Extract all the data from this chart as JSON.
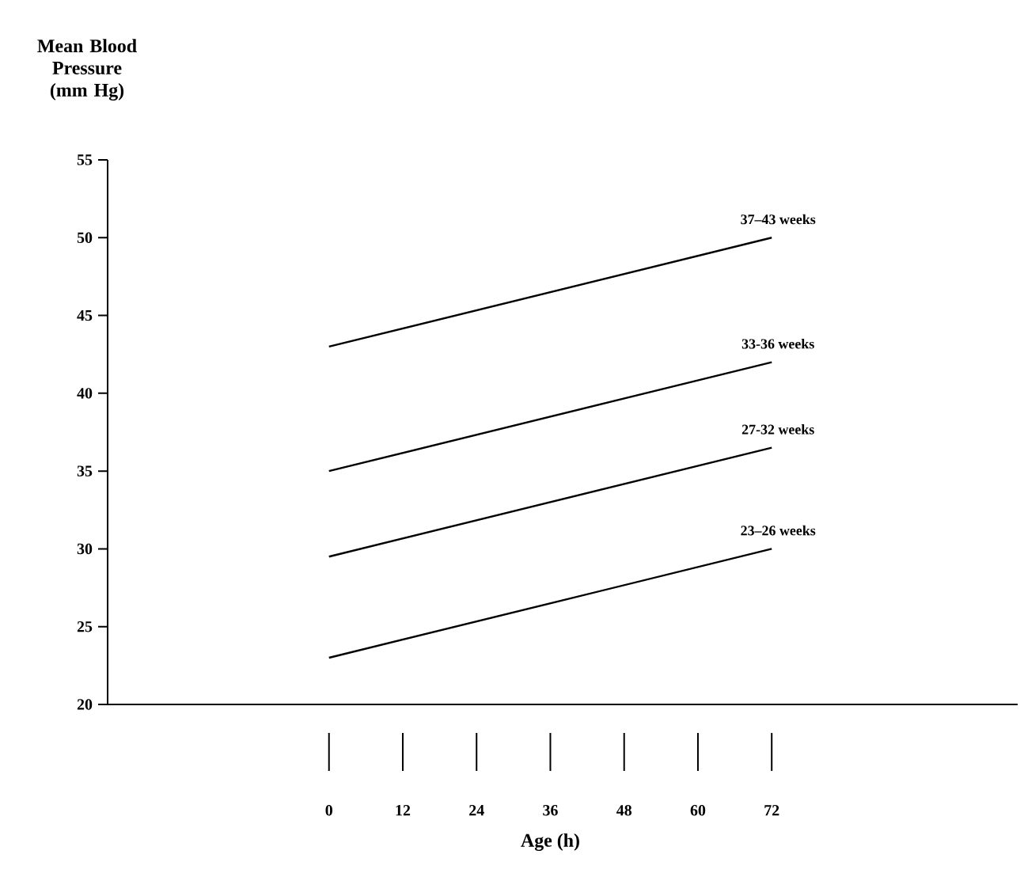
{
  "chart_data": {
    "type": "line",
    "ylabel": "Mean Blood Pressure (mm Hg)",
    "xlabel": "Age (h)",
    "xlim": [
      -36,
      112
    ],
    "xticks": [
      0,
      12,
      24,
      36,
      48,
      60,
      72
    ],
    "ylim": [
      20,
      55
    ],
    "yticks": [
      20,
      25,
      30,
      35,
      40,
      45,
      50,
      55
    ],
    "x": [
      0,
      72
    ],
    "series": [
      {
        "name": "37–43 weeks",
        "color": "#000000",
        "values": [
          43,
          50
        ]
      },
      {
        "name": "33-36 weeks",
        "color": "#000000",
        "values": [
          35,
          42
        ]
      },
      {
        "name": "27-32 weeks",
        "color": "#000000",
        "values": [
          29.5,
          36.5
        ]
      },
      {
        "name": "23–26 weeks",
        "color": "#000000",
        "values": [
          23,
          30
        ]
      }
    ]
  }
}
